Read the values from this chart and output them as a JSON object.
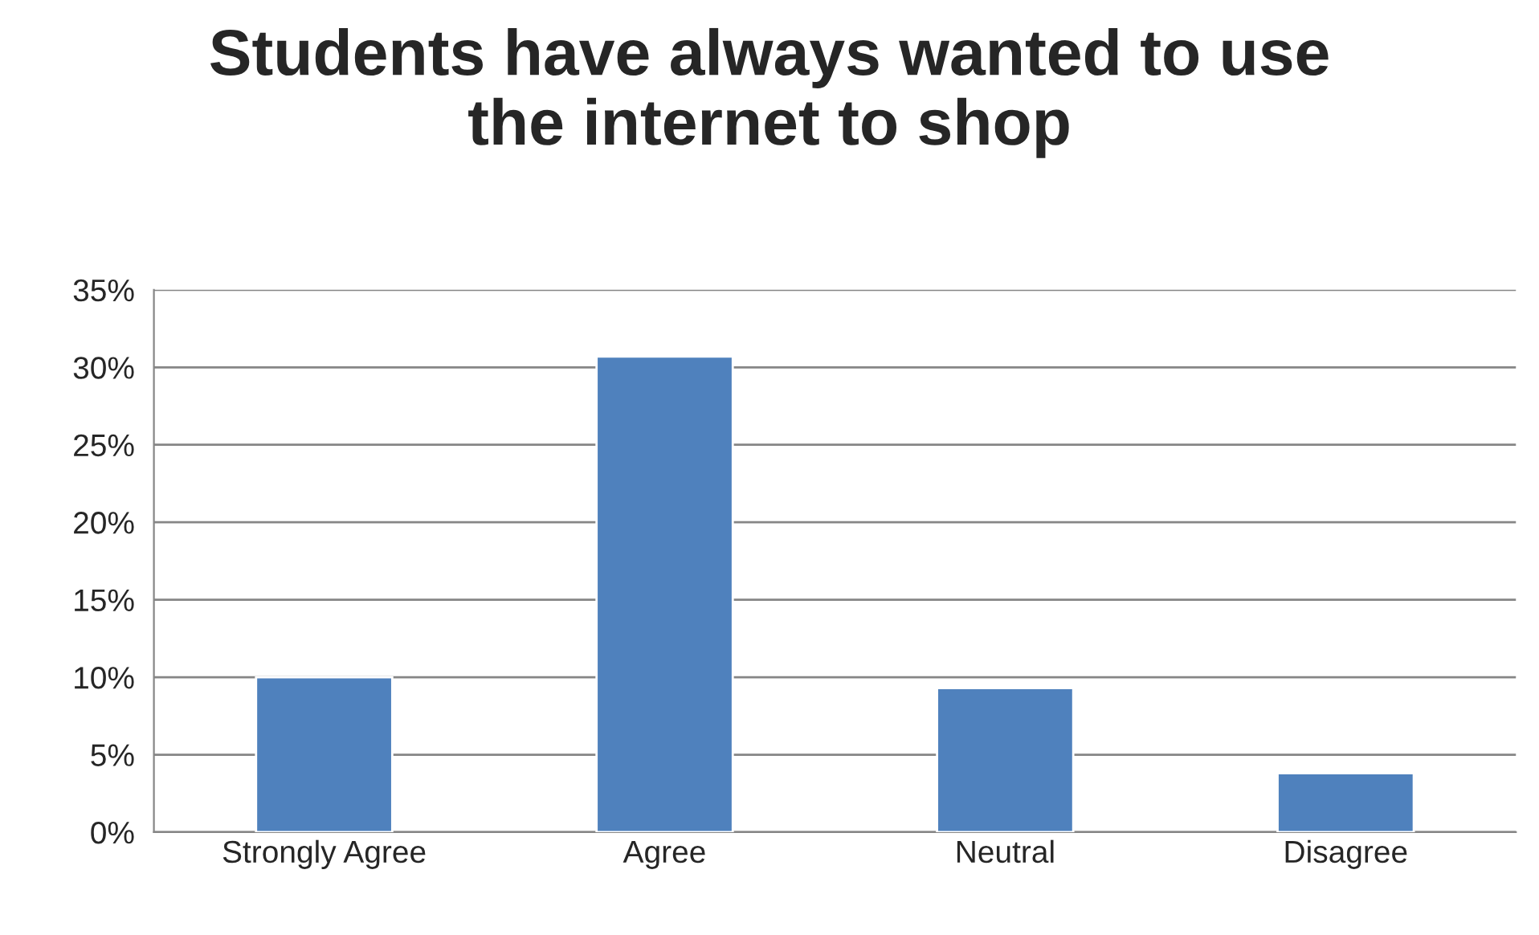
{
  "chart_data": {
    "type": "bar",
    "title": "Students have always wanted to use\nthe internet to shop",
    "categories": [
      "Strongly Agree",
      "Agree",
      "Neutral",
      "Disagree"
    ],
    "values": [
      10,
      30.7,
      9.3,
      3.8
    ],
    "color": "#4f81bd",
    "ylim": [
      0,
      35
    ],
    "yticks": [
      {
        "value": 0,
        "label": "0%"
      },
      {
        "value": 5,
        "label": "5%"
      },
      {
        "value": 10,
        "label": "10%"
      },
      {
        "value": 15,
        "label": "15%"
      },
      {
        "value": 20,
        "label": "20%"
      },
      {
        "value": 25,
        "label": "25%"
      },
      {
        "value": 30,
        "label": "30%"
      },
      {
        "value": 35,
        "label": "35%"
      }
    ],
    "grid": "y"
  }
}
